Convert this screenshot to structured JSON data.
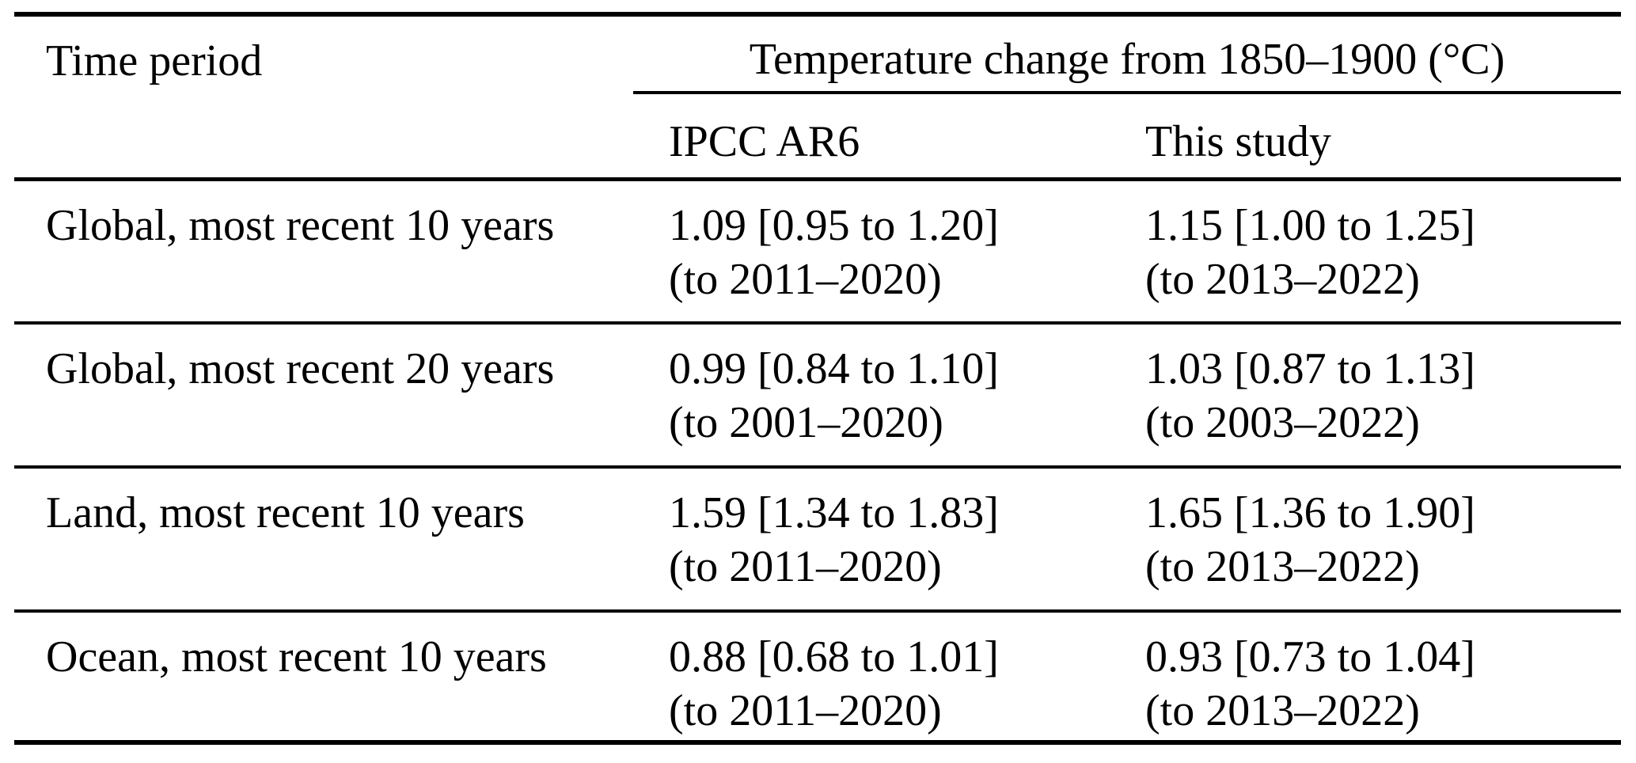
{
  "table": {
    "corner_header": "Time period",
    "span_header": "Temperature change from 1850–1900 (°C)",
    "sub_headers": [
      "IPCC AR6",
      "This study"
    ],
    "rows": [
      {
        "label": "Global, most recent 10 years",
        "ipcc_ar6": {
          "value": "1.09 [0.95 to 1.20]",
          "period": "(to 2011–2020)"
        },
        "this_study": {
          "value": "1.15 [1.00 to 1.25]",
          "period": "(to 2013–2022)"
        }
      },
      {
        "label": "Global, most recent 20 years",
        "ipcc_ar6": {
          "value": "0.99 [0.84 to 1.10]",
          "period": "(to 2001–2020)"
        },
        "this_study": {
          "value": "1.03 [0.87 to 1.13]",
          "period": "(to 2003–2022)"
        }
      },
      {
        "label": "Land, most recent 10 years",
        "ipcc_ar6": {
          "value": "1.59 [1.34 to 1.83]",
          "period": "(to 2011–2020)"
        },
        "this_study": {
          "value": "1.65 [1.36 to 1.90]",
          "period": "(to 2013–2022)"
        }
      },
      {
        "label": "Ocean, most recent 10 years",
        "ipcc_ar6": {
          "value": "0.88 [0.68 to 1.01]",
          "period": "(to 2011–2020)"
        },
        "this_study": {
          "value": "0.93 [0.73 to 1.04]",
          "period": "(to 2013–2022)"
        }
      }
    ],
    "colors": {
      "text": "#000000",
      "background": "#ffffff",
      "rule": "#000000"
    }
  }
}
